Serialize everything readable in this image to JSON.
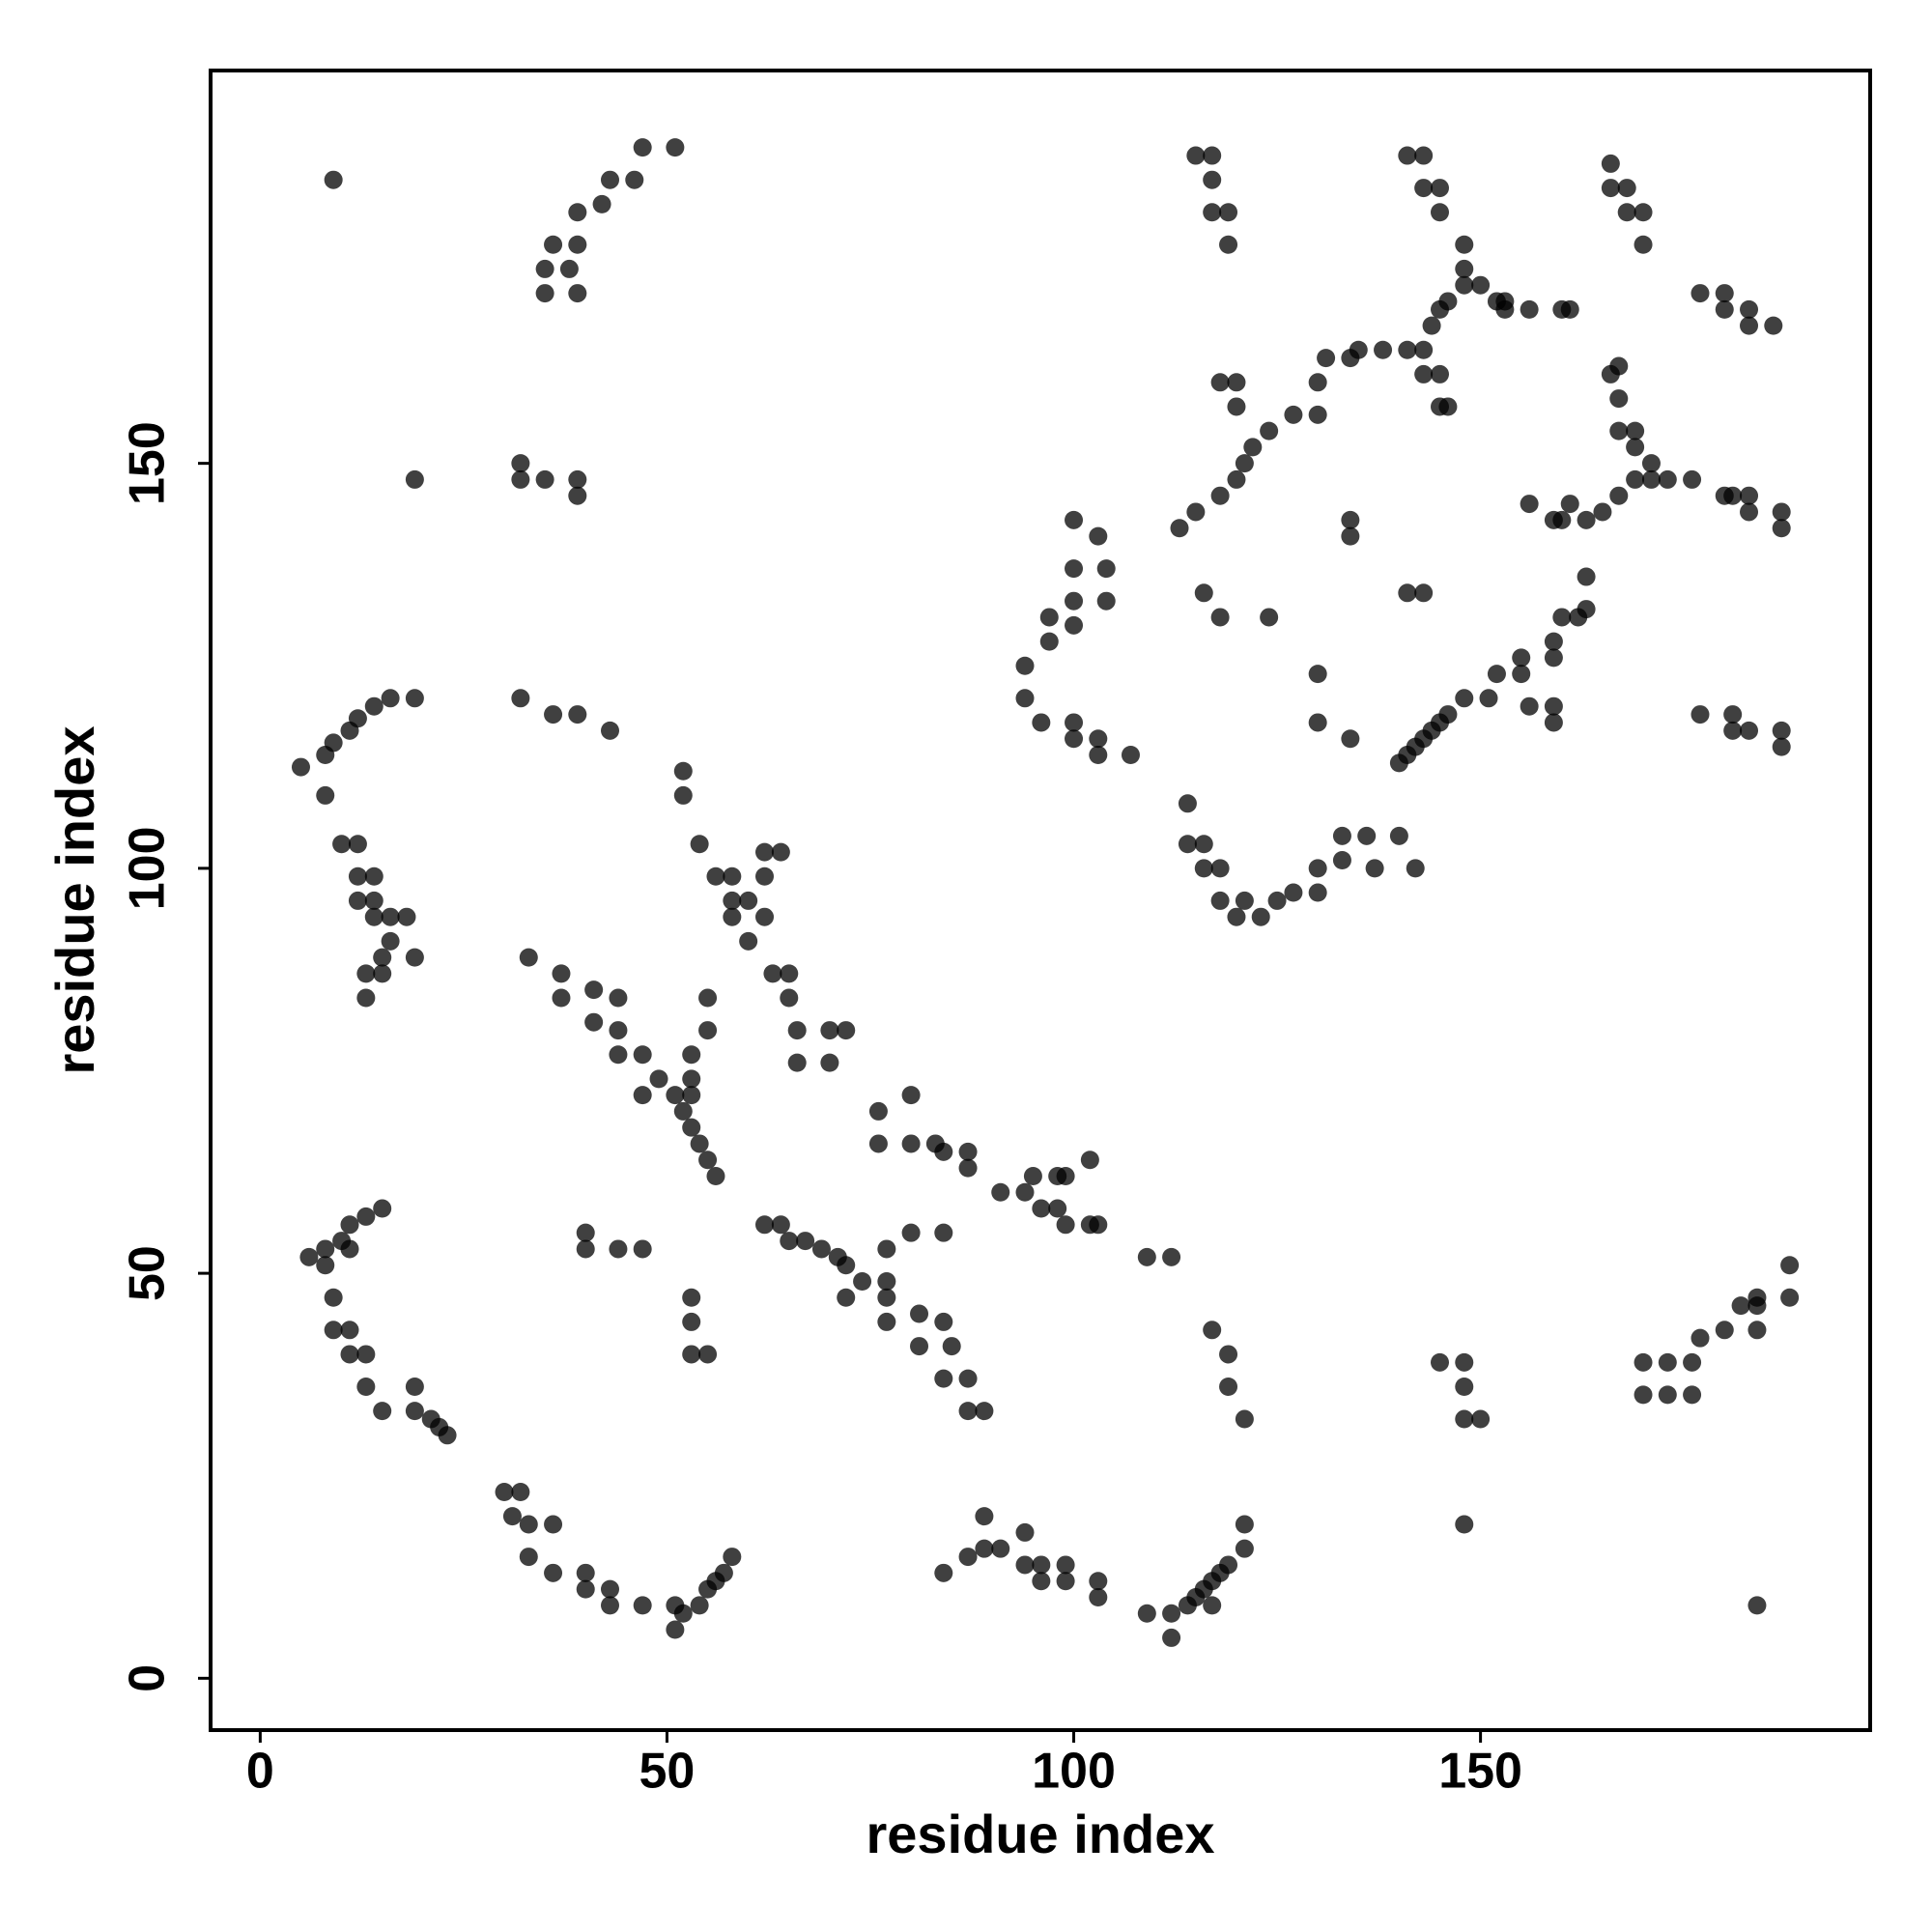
{
  "chart_data": {
    "type": "scatter",
    "x_label": "residue index",
    "y_label": "residue index",
    "xlim": [
      -6.1,
      197.9
    ],
    "ylim": [
      -6.4,
      198.5
    ],
    "xticks": [
      0,
      50,
      100,
      150
    ],
    "yticks": [
      0,
      50,
      100,
      150
    ],
    "opacity": 0.75,
    "series": [
      {
        "color": "#000000",
        "x": [
          9,
          35,
          35,
          36,
          39,
          39,
          42,
          43,
          46,
          47,
          51,
          39,
          38,
          32,
          35,
          39,
          39,
          32,
          19,
          5,
          8,
          9,
          11,
          12,
          14,
          16,
          19,
          8,
          10,
          12,
          12,
          14,
          12,
          14,
          14,
          16,
          18,
          16,
          15,
          13,
          13,
          19,
          15,
          32,
          36,
          39,
          43,
          54,
          56,
          58,
          58,
          58,
          60,
          62,
          62,
          62,
          64,
          60,
          52,
          52,
          33,
          37,
          37,
          41,
          41,
          44,
          44,
          44,
          47,
          47,
          49,
          51,
          53,
          52,
          53,
          54,
          55,
          56,
          55,
          55,
          53,
          53,
          63,
          65,
          65,
          66,
          66,
          70,
          72,
          70,
          76,
          80,
          80,
          76,
          83,
          84,
          87,
          87,
          91,
          94,
          95,
          98,
          99,
          102,
          96,
          99,
          102,
          103,
          98,
          62,
          64,
          65,
          67,
          69,
          71,
          72,
          72,
          74,
          77,
          80,
          84,
          77,
          77,
          77,
          81,
          81,
          84,
          85,
          84,
          87,
          87,
          89,
          40,
          40,
          44,
          47,
          53,
          53,
          53,
          55,
          109,
          112,
          6,
          8,
          8,
          10,
          11,
          13,
          15,
          11,
          9,
          9,
          11,
          11,
          13,
          13,
          15,
          19,
          19,
          21,
          23,
          22,
          30,
          32,
          31,
          33,
          36,
          33,
          36,
          40,
          40,
          43,
          43,
          47,
          51,
          51,
          52,
          54,
          55,
          57,
          58,
          56,
          84,
          87,
          89,
          89,
          91,
          94,
          94,
          96,
          96,
          99,
          99,
          103,
          103,
          109,
          112,
          112,
          114,
          115,
          116,
          117,
          118,
          119,
          121,
          121,
          117,
          117,
          119,
          119,
          121,
          145,
          148,
          148,
          148,
          150,
          148,
          170,
          170,
          173,
          173,
          176,
          176,
          177,
          180,
          182,
          184,
          184,
          184,
          188,
          188,
          184,
          94,
          94,
          96,
          97,
          97,
          100,
          100,
          100,
          100,
          103,
          104,
          104,
          100,
          100,
          103,
          103,
          107,
          114,
          114,
          116,
          116,
          118,
          118,
          121,
          120,
          123,
          125,
          127,
          130,
          130,
          133,
          133,
          136,
          137,
          140,
          142,
          113,
          115,
          118,
          120,
          121,
          122,
          124,
          127,
          130,
          130,
          131,
          134,
          135,
          138,
          141,
          143,
          144,
          145,
          146,
          148,
          150,
          152,
          153,
          153,
          156,
          160,
          161,
          115,
          117,
          117,
          117,
          119,
          119,
          141,
          143,
          143,
          145,
          145,
          148,
          148,
          166,
          166,
          168,
          168,
          170,
          170,
          177,
          180,
          180,
          183,
          183,
          186,
          118,
          120,
          120,
          143,
          145,
          145,
          146,
          166,
          167,
          167,
          167,
          169,
          169,
          171,
          171,
          169,
          167,
          165,
          163,
          161,
          160,
          159,
          156,
          173,
          176,
          180,
          181,
          183,
          183,
          187,
          187,
          163,
          163,
          162,
          160,
          159,
          155,
          155,
          152,
          151,
          148,
          145,
          143,
          141,
          140,
          142,
          144,
          146,
          156,
          159,
          159,
          159,
          134,
          134,
          116,
          118,
          124,
          130,
          130,
          134,
          141,
          143,
          177,
          181,
          181,
          183,
          187,
          187
        ],
        "y": [
          185,
          174,
          171,
          177,
          177,
          181,
          182,
          185,
          185,
          189,
          189,
          171,
          174,
          148,
          148,
          148,
          146,
          150,
          148,
          112.5,
          114,
          115.5,
          117,
          118.5,
          120,
          121,
          121,
          109,
          103,
          103,
          99,
          99,
          96,
          96,
          94,
          94,
          94,
          91,
          89,
          87,
          84,
          89,
          87,
          121,
          119,
          119,
          117,
          103,
          99,
          99,
          96,
          94,
          96,
          94,
          99,
          102,
          102,
          91,
          112,
          109,
          89,
          87,
          84,
          85,
          81,
          84,
          80,
          77,
          77,
          72,
          74,
          72,
          72,
          70,
          68,
          66,
          64,
          62,
          80,
          84,
          77,
          74,
          87,
          87,
          84,
          80,
          76,
          80,
          80,
          76,
          70,
          72,
          66,
          66,
          66,
          65,
          65,
          63,
          60,
          60,
          62,
          62,
          62,
          64,
          58,
          56,
          56,
          56,
          58,
          56,
          56,
          54,
          54,
          53,
          52,
          51,
          47,
          49,
          53,
          55,
          55,
          49,
          47,
          44,
          45,
          41,
          44,
          41,
          37,
          37,
          33,
          33,
          55,
          53,
          53,
          53,
          47,
          44,
          40,
          40,
          52,
          52,
          52,
          53,
          51,
          54,
          56,
          57,
          58,
          53,
          47,
          43,
          43,
          40,
          40,
          36,
          33,
          36,
          33,
          32,
          30,
          31,
          23,
          23,
          20,
          19,
          19,
          15,
          13,
          13,
          11,
          11,
          9,
          9,
          9,
          6,
          8,
          9,
          11,
          13,
          15,
          12,
          13,
          15,
          20,
          16,
          16,
          18,
          14,
          14,
          12,
          14,
          12,
          12,
          10,
          8,
          8,
          5,
          9,
          10,
          11,
          12,
          13,
          14,
          16,
          19,
          9,
          43,
          40,
          36,
          32,
          39,
          39,
          36,
          32,
          32,
          19,
          39,
          35,
          35,
          39,
          39,
          35,
          42,
          43,
          46,
          46,
          43,
          47,
          51,
          47,
          9,
          125,
          121,
          118,
          128,
          131,
          130,
          133,
          137,
          143,
          141,
          137,
          133,
          118,
          116,
          116,
          114,
          114,
          108,
          103,
          103,
          100,
          100,
          96,
          96,
          94,
          94,
          96,
          97,
          97,
          100,
          101,
          104,
          104,
          100,
          104,
          100,
          142,
          144,
          146,
          148,
          150,
          152,
          154,
          156,
          156,
          160,
          163,
          163,
          164,
          164,
          164,
          164,
          167,
          169,
          170,
          172,
          172,
          170,
          170,
          169,
          169,
          169,
          169,
          188,
          188,
          185,
          181,
          181,
          177,
          188,
          188,
          184,
          184,
          181,
          177,
          174,
          187,
          184,
          184,
          181,
          181,
          177,
          171,
          171,
          169,
          169,
          167,
          167,
          160,
          160,
          157,
          161,
          161,
          157,
          157,
          161,
          162,
          158,
          154,
          154,
          152,
          150,
          148,
          148,
          146,
          144,
          143,
          145,
          143,
          143,
          145,
          148,
          148,
          146,
          146,
          146,
          144,
          144,
          142,
          136,
          132,
          131,
          131,
          128,
          126,
          124,
          124,
          121,
          121,
          118,
          116,
          114,
          113,
          115,
          117,
          119,
          120,
          120,
          118,
          126,
          143,
          141,
          134,
          131,
          131,
          124,
          118,
          116,
          134,
          134,
          119,
          119,
          117,
          117,
          117,
          115
        ]
      }
    ]
  }
}
